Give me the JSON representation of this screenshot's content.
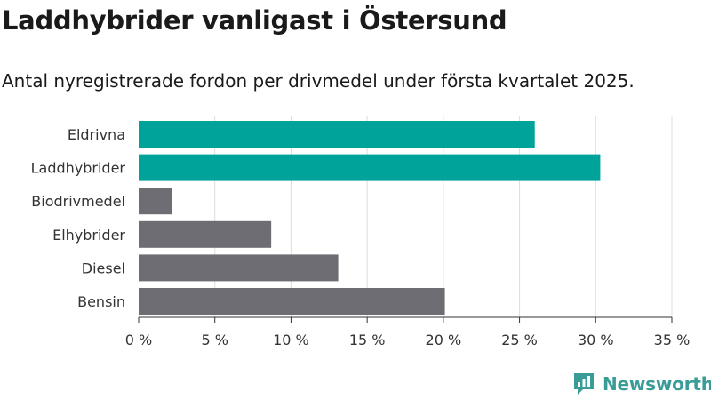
{
  "title": "Laddhybrider vanligast i Östersund",
  "subtitle": "Antal nyregistrerade fordon per drivmedel under första kvartalet 2025.",
  "brand": {
    "name": "Newsworthy",
    "icon": "newsworthy-logo-icon",
    "color": "#3a9c96"
  },
  "chart_data": {
    "type": "bar",
    "orientation": "horizontal",
    "title": "Laddhybrider vanligast i Östersund",
    "subtitle": "Antal nyregistrerade fordon per drivmedel under första kvartalet 2025.",
    "categories": [
      "Eldrivna",
      "Laddhybrider",
      "Biodrivmedel",
      "Elhybrider",
      "Diesel",
      "Bensin"
    ],
    "values": [
      26.0,
      30.3,
      2.2,
      8.7,
      13.1,
      20.1
    ],
    "colors": [
      "#00a39a",
      "#00a39a",
      "#6e6d73",
      "#6e6d73",
      "#6e6d73",
      "#6e6d73"
    ],
    "xlim": [
      0,
      35
    ],
    "xticks": [
      0,
      5,
      10,
      15,
      20,
      25,
      30,
      35
    ],
    "xtick_labels": [
      "0 %",
      "5 %",
      "10 %",
      "15 %",
      "20 %",
      "25 %",
      "30 %",
      "35 %"
    ],
    "grid": "vertical",
    "xlabel": "",
    "ylabel": ""
  }
}
